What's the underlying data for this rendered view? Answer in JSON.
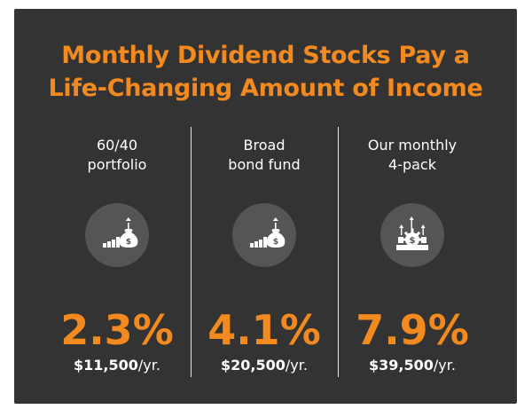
{
  "title": {
    "line1": "Monthly Dividend Stocks Pay a",
    "line2": "Life-Changing Amount of Income"
  },
  "columns": [
    {
      "label_line1": "60/40",
      "label_line2": "portfolio",
      "icon": "money-bag-growth-icon",
      "percent": "2.3%",
      "income_amount": "$11,500",
      "income_unit": "/yr."
    },
    {
      "label_line1": "Broad",
      "label_line2": "bond fund",
      "icon": "money-bag-growth-icon",
      "percent": "4.1%",
      "income_amount": "$20,500",
      "income_unit": "/yr."
    },
    {
      "label_line1": "Our monthly",
      "label_line2": "4-pack",
      "icon": "dollar-gear-growth-icon",
      "percent": "7.9%",
      "income_amount": "$39,500",
      "income_unit": "/yr."
    }
  ],
  "colors": {
    "accent": "#f28a1f",
    "background": "#333333",
    "icon_circle": "#555555"
  }
}
